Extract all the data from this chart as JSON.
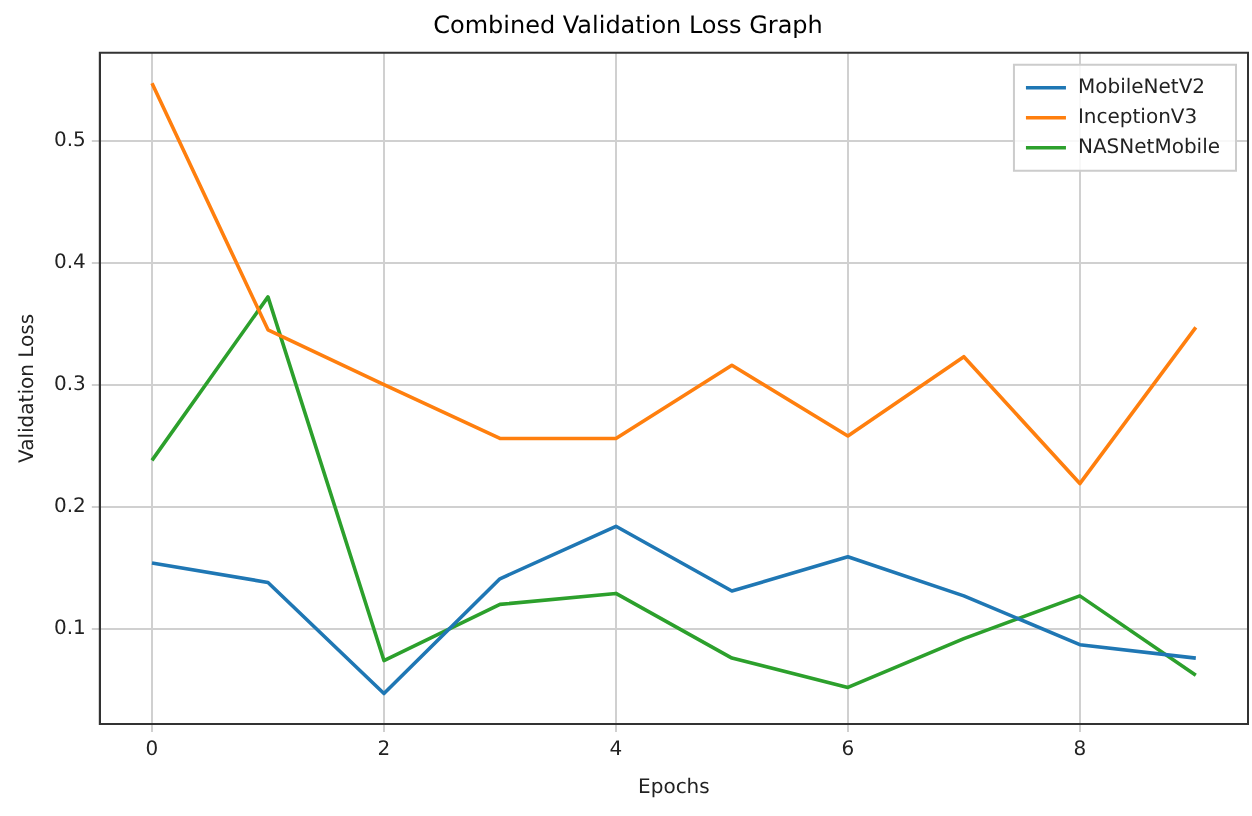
{
  "chart_data": {
    "type": "line",
    "title": "Combined Validation Loss Graph",
    "xlabel": "Epochs",
    "ylabel": "Validation Loss",
    "x": [
      0,
      1,
      2,
      3,
      4,
      5,
      6,
      7,
      8,
      9
    ],
    "series": [
      {
        "name": "MobileNetV2",
        "color": "#1f77b4",
        "values": [
          0.154,
          0.138,
          0.047,
          0.141,
          0.184,
          0.131,
          0.159,
          0.127,
          0.087,
          0.076
        ]
      },
      {
        "name": "InceptionV3",
        "color": "#ff7f0e",
        "values": [
          0.547,
          0.345,
          0.3,
          0.256,
          0.256,
          0.316,
          0.258,
          0.323,
          0.219,
          0.347
        ]
      },
      {
        "name": "NASNetMobile",
        "color": "#2ca02c",
        "values": [
          0.238,
          0.372,
          0.074,
          0.12,
          0.129,
          0.076,
          0.052,
          0.092,
          0.127,
          0.062
        ]
      }
    ],
    "xlim": [
      -0.45,
      9.45
    ],
    "xticks": [
      0,
      2,
      4,
      6,
      8
    ],
    "ylim": [
      0.022,
      0.572
    ],
    "yticks": [
      0.1,
      0.2,
      0.3,
      0.4,
      0.5
    ],
    "grid": true,
    "legend": "top right",
    "marker": "none",
    "line_style": "solid"
  }
}
